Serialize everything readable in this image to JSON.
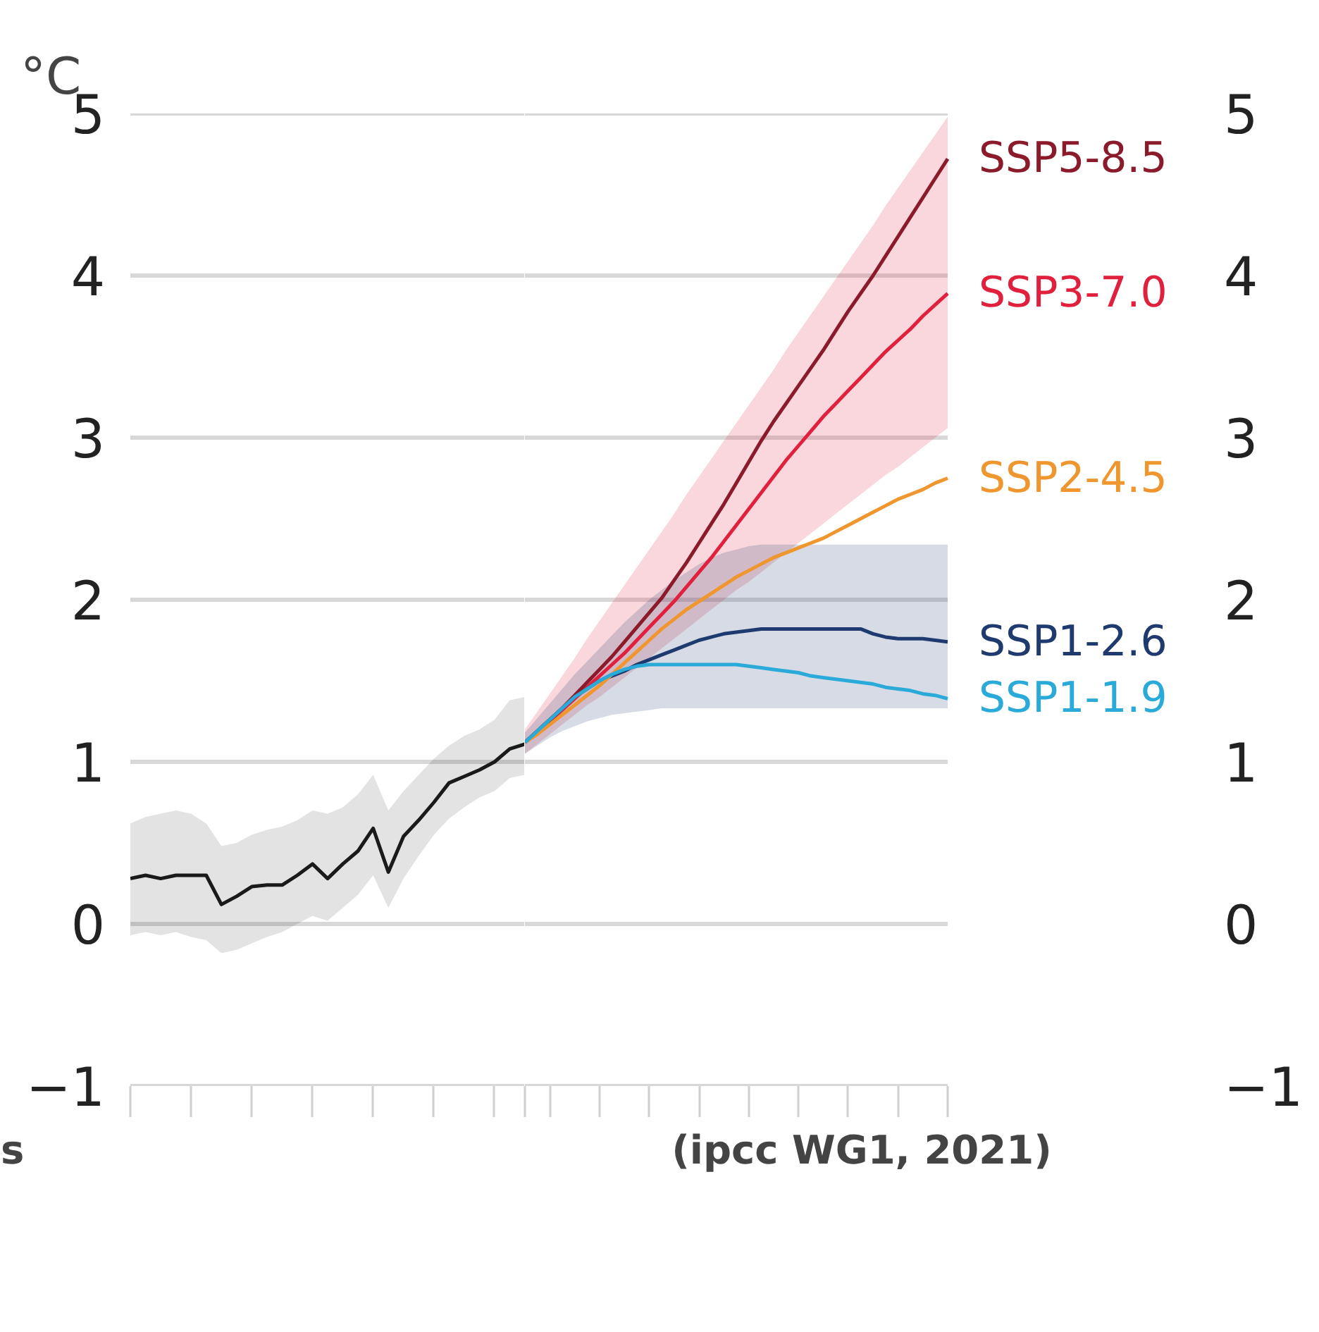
{
  "chart_data": [
    {
      "type": "line",
      "ylabel": "°C",
      "annotations": [
        "s"
      ],
      "categories": [
        null,
        null,
        null,
        null,
        null,
        null,
        null,
        null,
        null,
        null,
        null,
        null,
        null,
        null,
        null,
        null,
        null,
        null,
        null,
        null,
        null,
        null,
        null,
        null,
        null,
        null,
        null
      ],
      "ylim": [
        -1,
        5
      ],
      "yticks": [
        {
          "value": -1,
          "label": "−1"
        },
        0,
        1,
        2,
        3,
        4,
        5
      ],
      "grid": "y",
      "line_style": "solid",
      "series": [
        {
          "color": "#1a1a1a",
          "values": [
            0.28,
            0.3,
            0.28,
            0.3,
            0.3,
            0.3,
            0.12,
            0.17,
            0.23,
            0.24,
            0.24,
            0.3,
            0.37,
            0.28,
            0.37,
            0.45,
            0.59,
            0.32,
            0.54,
            0.64,
            0.75,
            0.87,
            0.91,
            0.95,
            1.0,
            1.08,
            1.11
          ],
          "upper": [
            0.62,
            0.66,
            0.68,
            0.7,
            0.68,
            0.62,
            0.48,
            0.5,
            0.55,
            0.58,
            0.6,
            0.64,
            0.7,
            0.68,
            0.72,
            0.8,
            0.92,
            0.7,
            0.82,
            0.92,
            1.02,
            1.1,
            1.16,
            1.2,
            1.26,
            1.38,
            1.4
          ],
          "lower": [
            -0.07,
            -0.05,
            -0.07,
            -0.05,
            -0.08,
            -0.1,
            -0.18,
            -0.16,
            -0.12,
            -0.08,
            -0.05,
            0.0,
            0.05,
            0.02,
            0.1,
            0.18,
            0.3,
            0.1,
            0.28,
            0.42,
            0.55,
            0.65,
            0.72,
            0.78,
            0.82,
            0.9,
            0.92
          ]
        }
      ]
    },
    {
      "type": "line",
      "annotations": [
        "(ipcc WG1, 2021)"
      ],
      "categories": [
        null,
        null,
        null,
        null,
        null,
        null,
        null,
        null,
        null,
        null,
        null,
        null,
        null,
        null,
        null,
        null,
        null,
        null,
        null,
        null,
        null,
        null,
        null,
        null,
        null,
        null,
        null,
        null,
        null,
        null,
        null,
        null,
        null,
        null,
        null
      ],
      "ylim": [
        -1,
        5
      ],
      "yticks": [
        {
          "value": -1,
          "label": "−1"
        },
        0,
        1,
        2,
        3,
        4,
        5
      ],
      "grid": "y",
      "line_style": "solid",
      "series": [
        {
          "name": "SSP3-7.0",
          "color": "#e0203c",
          "values": [
            1.12,
            1.18,
            1.25,
            1.32,
            1.39,
            1.46,
            1.53,
            1.6,
            1.67,
            1.75,
            1.83,
            1.91,
            1.99,
            2.08,
            2.17,
            2.26,
            2.36,
            2.46,
            2.56,
            2.66,
            2.76,
            2.86,
            2.95,
            3.04,
            3.13,
            3.21,
            3.29,
            3.37,
            3.45,
            3.53,
            3.6,
            3.67,
            3.75,
            3.82,
            3.89
          ],
          "upper": [
            1.2,
            1.31,
            1.42,
            1.53,
            1.64,
            1.76,
            1.87,
            1.98,
            2.09,
            2.2,
            2.31,
            2.42,
            2.53,
            2.65,
            2.76,
            2.87,
            2.98,
            3.09,
            3.2,
            3.31,
            3.42,
            3.54,
            3.65,
            3.76,
            3.87,
            3.98,
            4.09,
            4.2,
            4.31,
            4.43,
            4.54,
            4.65,
            4.76,
            4.87,
            4.98
          ],
          "lower": [
            1.05,
            1.11,
            1.17,
            1.23,
            1.29,
            1.35,
            1.4,
            1.46,
            1.52,
            1.58,
            1.64,
            1.7,
            1.76,
            1.82,
            1.88,
            1.94,
            2.0,
            2.06,
            2.11,
            2.17,
            2.23,
            2.29,
            2.35,
            2.41,
            2.47,
            2.53,
            2.59,
            2.65,
            2.71,
            2.77,
            2.82,
            2.88,
            2.94,
            3.0,
            3.06
          ]
        },
        {
          "name": "SSP1-2.6",
          "color": "#1e3a6e",
          "values": [
            1.12,
            1.19,
            1.26,
            1.33,
            1.4,
            1.45,
            1.5,
            1.53,
            1.56,
            1.6,
            1.63,
            1.66,
            1.69,
            1.72,
            1.75,
            1.77,
            1.79,
            1.8,
            1.81,
            1.82,
            1.82,
            1.82,
            1.82,
            1.82,
            1.82,
            1.82,
            1.82,
            1.82,
            1.79,
            1.77,
            1.76,
            1.76,
            1.76,
            1.75,
            1.74
          ],
          "upper": [
            1.18,
            1.27,
            1.36,
            1.45,
            1.54,
            1.62,
            1.7,
            1.78,
            1.86,
            1.93,
            2.0,
            2.06,
            2.12,
            2.17,
            2.22,
            2.26,
            2.29,
            2.31,
            2.33,
            2.34,
            2.34,
            2.34,
            2.34,
            2.34,
            2.34,
            2.34,
            2.34,
            2.34,
            2.34,
            2.34,
            2.34,
            2.34,
            2.34,
            2.34,
            2.34
          ],
          "lower": [
            1.05,
            1.1,
            1.15,
            1.19,
            1.22,
            1.25,
            1.27,
            1.29,
            1.3,
            1.31,
            1.32,
            1.33,
            1.33,
            1.33,
            1.33,
            1.33,
            1.33,
            1.33,
            1.33,
            1.33,
            1.33,
            1.33,
            1.33,
            1.33,
            1.33,
            1.33,
            1.33,
            1.33,
            1.33,
            1.33,
            1.33,
            1.33,
            1.33,
            1.33,
            1.33
          ]
        },
        {
          "name": "SSP5-8.5",
          "color": "#8b1a2b",
          "values": [
            1.12,
            1.19,
            1.26,
            1.33,
            1.41,
            1.49,
            1.57,
            1.65,
            1.74,
            1.83,
            1.92,
            2.01,
            2.12,
            2.23,
            2.35,
            2.47,
            2.59,
            2.72,
            2.85,
            2.98,
            3.1,
            3.21,
            3.32,
            3.43,
            3.54,
            3.66,
            3.78,
            3.89,
            4.0,
            4.12,
            4.24,
            4.36,
            4.48,
            4.6,
            4.72
          ]
        },
        {
          "name": "SSP2-4.5",
          "color": "#f0962e",
          "values": [
            1.12,
            1.17,
            1.23,
            1.29,
            1.35,
            1.41,
            1.47,
            1.54,
            1.61,
            1.68,
            1.75,
            1.82,
            1.88,
            1.94,
            1.99,
            2.04,
            2.09,
            2.14,
            2.18,
            2.22,
            2.26,
            2.29,
            2.32,
            2.35,
            2.38,
            2.42,
            2.46,
            2.5,
            2.54,
            2.58,
            2.62,
            2.65,
            2.68,
            2.72,
            2.75
          ]
        },
        {
          "name": "SSP1-1.9",
          "color": "#2aaad8",
          "values": [
            1.12,
            1.19,
            1.26,
            1.33,
            1.4,
            1.45,
            1.5,
            1.54,
            1.57,
            1.59,
            1.6,
            1.6,
            1.6,
            1.6,
            1.6,
            1.6,
            1.6,
            1.6,
            1.59,
            1.58,
            1.57,
            1.56,
            1.55,
            1.53,
            1.52,
            1.51,
            1.5,
            1.49,
            1.48,
            1.46,
            1.45,
            1.44,
            1.42,
            1.41,
            1.39
          ]
        }
      ]
    }
  ]
}
